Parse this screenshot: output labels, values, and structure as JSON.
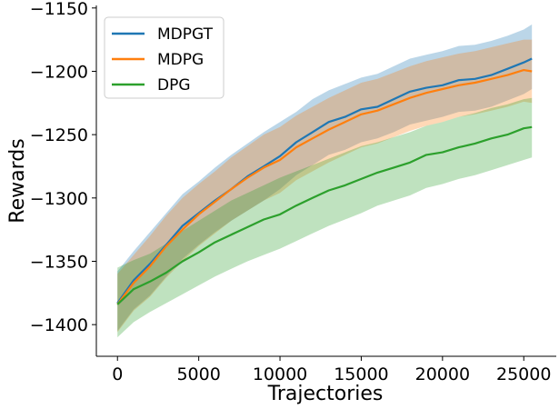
{
  "chart_data": {
    "type": "line",
    "title": "",
    "xlabel": "Trajectories",
    "ylabel": "Rewards",
    "xlim": [
      -1300,
      27000
    ],
    "ylim": [
      -1425,
      -1148
    ],
    "xticks": [
      0,
      5000,
      10000,
      15000,
      20000,
      25000
    ],
    "yticks": [
      -1400,
      -1350,
      -1300,
      -1250,
      -1200,
      -1150
    ],
    "xtick_labels": [
      "0",
      "5000",
      "10000",
      "15000",
      "20000",
      "25000"
    ],
    "ytick_labels": [
      "−1400",
      "−1350",
      "−1300",
      "−1250",
      "−1200",
      "−1150"
    ],
    "grid": false,
    "legend_position": "top-left",
    "x": [
      0,
      1000,
      2000,
      3000,
      4000,
      5000,
      6000,
      7000,
      8000,
      9000,
      10000,
      11000,
      12000,
      13000,
      14000,
      15000,
      16000,
      17000,
      18000,
      19000,
      20000,
      21000,
      22000,
      23000,
      24000,
      25000,
      25500
    ],
    "series": [
      {
        "name": "MDPGT",
        "color": "#1f77b4",
        "mean": [
          -1383,
          -1365,
          -1352,
          -1337,
          -1322,
          -1312,
          -1302,
          -1293,
          -1283,
          -1275,
          -1267,
          -1256,
          -1248,
          -1240,
          -1236,
          -1230,
          -1228,
          -1222,
          -1216,
          -1213,
          -1211,
          -1207,
          -1206,
          -1203,
          -1198,
          -1193,
          -1190
        ],
        "upper": [
          -1358,
          -1342,
          -1327,
          -1312,
          -1297,
          -1287,
          -1276,
          -1266,
          -1257,
          -1248,
          -1240,
          -1232,
          -1222,
          -1215,
          -1210,
          -1205,
          -1202,
          -1196,
          -1190,
          -1187,
          -1184,
          -1180,
          -1179,
          -1176,
          -1172,
          -1167,
          -1163
        ],
        "lower": [
          -1405,
          -1388,
          -1377,
          -1362,
          -1348,
          -1337,
          -1327,
          -1318,
          -1310,
          -1302,
          -1293,
          -1282,
          -1274,
          -1266,
          -1262,
          -1256,
          -1253,
          -1248,
          -1242,
          -1239,
          -1236,
          -1232,
          -1231,
          -1228,
          -1223,
          -1218,
          -1214
        ]
      },
      {
        "name": "MDPG",
        "color": "#ff7f0e",
        "mean": [
          -1384,
          -1367,
          -1354,
          -1338,
          -1325,
          -1313,
          -1303,
          -1293,
          -1284,
          -1276,
          -1270,
          -1260,
          -1253,
          -1246,
          -1240,
          -1234,
          -1231,
          -1226,
          -1221,
          -1217,
          -1214,
          -1211,
          -1209,
          -1206,
          -1203,
          -1199,
          -1200
        ],
        "upper": [
          -1360,
          -1345,
          -1330,
          -1314,
          -1300,
          -1289,
          -1279,
          -1268,
          -1259,
          -1250,
          -1244,
          -1235,
          -1228,
          -1221,
          -1215,
          -1209,
          -1206,
          -1201,
          -1196,
          -1192,
          -1189,
          -1186,
          -1184,
          -1181,
          -1178,
          -1175,
          -1175
        ],
        "lower": [
          -1406,
          -1389,
          -1378,
          -1363,
          -1350,
          -1338,
          -1328,
          -1318,
          -1310,
          -1302,
          -1296,
          -1286,
          -1279,
          -1272,
          -1266,
          -1260,
          -1257,
          -1252,
          -1247,
          -1243,
          -1240,
          -1236,
          -1234,
          -1231,
          -1228,
          -1224,
          -1225
        ]
      },
      {
        "name": "DPG",
        "color": "#2ca02c",
        "mean": [
          -1384,
          -1372,
          -1366,
          -1359,
          -1350,
          -1343,
          -1335,
          -1329,
          -1323,
          -1317,
          -1313,
          -1306,
          -1300,
          -1294,
          -1290,
          -1285,
          -1280,
          -1276,
          -1272,
          -1266,
          -1264,
          -1260,
          -1257,
          -1253,
          -1250,
          -1245,
          -1244
        ],
        "upper": [
          -1355,
          -1349,
          -1344,
          -1336,
          -1326,
          -1318,
          -1310,
          -1302,
          -1296,
          -1290,
          -1284,
          -1279,
          -1274,
          -1269,
          -1264,
          -1259,
          -1256,
          -1252,
          -1248,
          -1243,
          -1240,
          -1236,
          -1233,
          -1229,
          -1226,
          -1222,
          -1221
        ],
        "lower": [
          -1410,
          -1398,
          -1390,
          -1383,
          -1376,
          -1369,
          -1362,
          -1356,
          -1350,
          -1345,
          -1340,
          -1334,
          -1328,
          -1322,
          -1317,
          -1312,
          -1306,
          -1302,
          -1298,
          -1292,
          -1289,
          -1285,
          -1282,
          -1278,
          -1274,
          -1270,
          -1268
        ]
      }
    ]
  }
}
